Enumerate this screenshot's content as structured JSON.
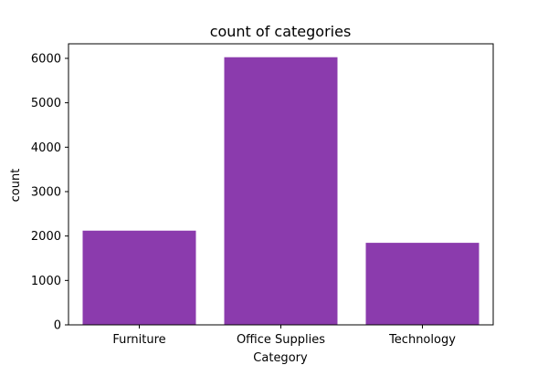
{
  "chart_data": {
    "type": "bar",
    "title": "count of categories",
    "xlabel": "Category",
    "ylabel": "count",
    "categories": [
      "Furniture",
      "Office Supplies",
      "Technology"
    ],
    "values": [
      2121,
      6026,
      1847
    ],
    "ylim": [
      0,
      6328
    ],
    "yticks": [
      0,
      1000,
      2000,
      3000,
      4000,
      5000,
      6000
    ],
    "bar_color": "#8B3BAD",
    "grid": false,
    "legend": "none"
  }
}
